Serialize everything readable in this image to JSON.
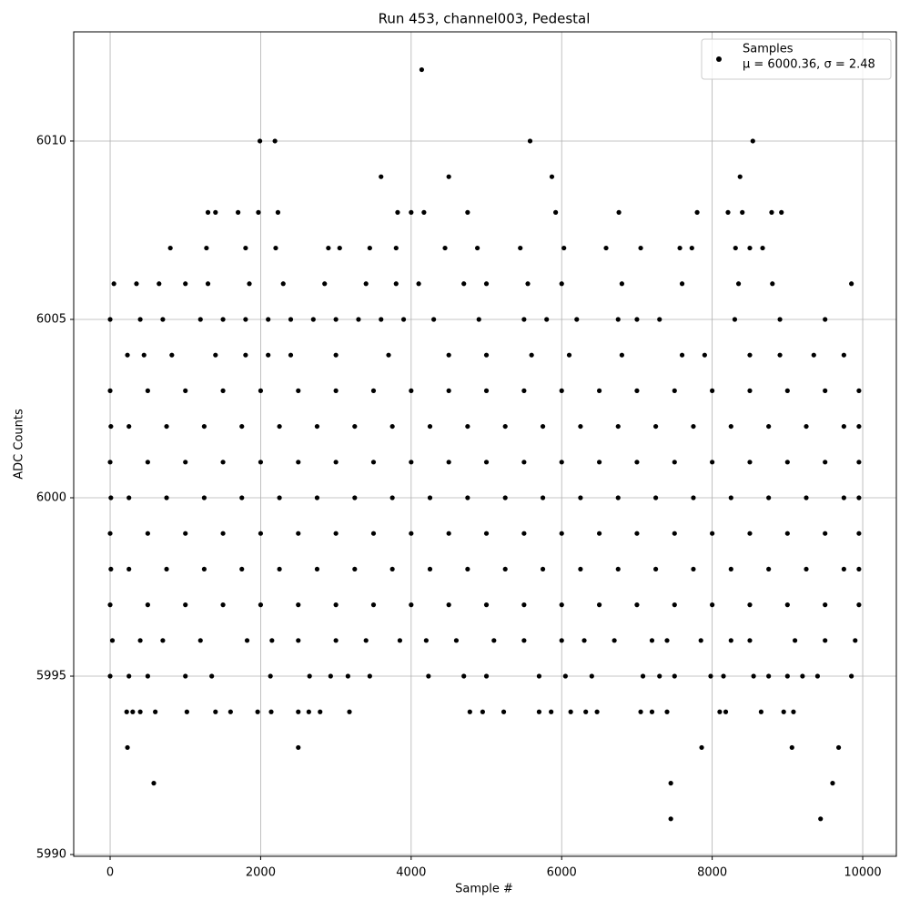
{
  "chart_data": {
    "type": "scatter",
    "title": "Run 453, channel003, Pedestal",
    "x_label": "Sample #",
    "y_label": "ADC Counts",
    "xlim": [
      -484,
      10447
    ],
    "ylim": [
      5989.95,
      6013.06
    ],
    "xticks": [
      0,
      2000,
      4000,
      6000,
      8000,
      10000
    ],
    "yticks": [
      5990,
      5995,
      6000,
      6005,
      6010
    ],
    "grid": true,
    "legend": "upper right",
    "legend_stats": "μ = 6000.36, σ = 2.48",
    "series": [
      {
        "name": "Samples",
        "color": "#000000",
        "x": [
          4140,
          1990,
          2190,
          5580,
          8540,
          3600,
          4500,
          5870,
          8370,
          1300,
          1400,
          1700,
          1970,
          2230,
          3820,
          4000,
          4170,
          4750,
          5920,
          6760,
          7800,
          8210,
          8400,
          8790,
          8920,
          800,
          1280,
          1800,
          2200,
          2900,
          3050,
          3450,
          3800,
          4450,
          4880,
          5450,
          6030,
          6590,
          7050,
          7570,
          7730,
          8310,
          8500,
          8670,
          50,
          350,
          650,
          1000,
          1300,
          1850,
          2300,
          2850,
          3400,
          3800,
          4100,
          4700,
          5000,
          5550,
          6000,
          6800,
          7600,
          8350,
          8800,
          9850,
          0,
          400,
          700,
          1200,
          1500,
          1800,
          2100,
          2400,
          2700,
          3000,
          3300,
          3600,
          3900,
          4300,
          4900,
          5500,
          5800,
          6200,
          6750,
          7000,
          7300,
          8300,
          8900,
          9500,
          230,
          450,
          820,
          1400,
          1800,
          2100,
          2400,
          3000,
          3700,
          4500,
          5000,
          5600,
          6100,
          6800,
          7600,
          7900,
          8500,
          8900,
          9350,
          9750,
          0,
          500,
          1000,
          1500,
          2000,
          2500,
          3000,
          3500,
          4000,
          4500,
          5000,
          5500,
          6000,
          6500,
          7000,
          7500,
          8000,
          8500,
          9000,
          9500,
          9950,
          10,
          250,
          750,
          1250,
          1750,
          2250,
          2750,
          3250,
          3750,
          4250,
          4750,
          5250,
          5750,
          6250,
          6750,
          7250,
          7750,
          8250,
          8750,
          9250,
          9750,
          9950,
          0,
          500,
          1000,
          1500,
          2000,
          2500,
          3000,
          3500,
          4000,
          4500,
          5000,
          5500,
          6000,
          6500,
          7000,
          7500,
          8000,
          8500,
          9000,
          9500,
          9950,
          10,
          250,
          750,
          1250,
          1750,
          2250,
          2750,
          3250,
          3750,
          4250,
          4750,
          5250,
          5750,
          6250,
          6750,
          7250,
          7750,
          8250,
          8750,
          9250,
          9750,
          9950,
          0,
          500,
          1000,
          1500,
          2000,
          2500,
          3000,
          3500,
          4000,
          4500,
          5000,
          5500,
          6000,
          6500,
          7000,
          7500,
          8000,
          8500,
          9000,
          9500,
          9950,
          10,
          250,
          750,
          1250,
          1750,
          2250,
          2750,
          3250,
          3750,
          4250,
          4750,
          5250,
          5750,
          6250,
          6750,
          7250,
          7750,
          8250,
          8750,
          9250,
          9750,
          9950,
          0,
          500,
          1000,
          1500,
          2000,
          2500,
          3000,
          3500,
          4000,
          4500,
          5000,
          5500,
          6000,
          6500,
          7000,
          7500,
          8000,
          8500,
          9000,
          9500,
          9950,
          30,
          400,
          700,
          1200,
          1820,
          2150,
          2500,
          3000,
          3400,
          3850,
          4200,
          4600,
          5100,
          5500,
          6000,
          6300,
          6700,
          7200,
          7400,
          7850,
          8250,
          8500,
          9100,
          9500,
          9900,
          0,
          250,
          500,
          1000,
          1350,
          2130,
          2650,
          2930,
          3160,
          3450,
          4230,
          4700,
          5000,
          5700,
          6050,
          6400,
          7080,
          7300,
          7500,
          7980,
          8150,
          8550,
          8750,
          9000,
          9200,
          9400,
          9850,
          220,
          300,
          400,
          600,
          1020,
          1400,
          1600,
          1960,
          2140,
          2500,
          2640,
          2790,
          3180,
          4780,
          4950,
          5230,
          5700,
          5860,
          6120,
          6320,
          6470,
          7050,
          7200,
          7400,
          8100,
          8180,
          8650,
          8950,
          9080,
          230,
          2500,
          7860,
          9060,
          9680,
          580,
          7450,
          9600,
          7450,
          9440
        ],
        "values": [
          6012,
          6010,
          6010,
          6010,
          6010,
          6009,
          6009,
          6009,
          6009,
          6008,
          6008,
          6008,
          6008,
          6008,
          6008,
          6008,
          6008,
          6008,
          6008,
          6008,
          6008,
          6008,
          6008,
          6008,
          6008,
          6007,
          6007,
          6007,
          6007,
          6007,
          6007,
          6007,
          6007,
          6007,
          6007,
          6007,
          6007,
          6007,
          6007,
          6007,
          6007,
          6007,
          6007,
          6007,
          6006,
          6006,
          6006,
          6006,
          6006,
          6006,
          6006,
          6006,
          6006,
          6006,
          6006,
          6006,
          6006,
          6006,
          6006,
          6006,
          6006,
          6006,
          6006,
          6006,
          6005,
          6005,
          6005,
          6005,
          6005,
          6005,
          6005,
          6005,
          6005,
          6005,
          6005,
          6005,
          6005,
          6005,
          6005,
          6005,
          6005,
          6005,
          6005,
          6005,
          6005,
          6005,
          6005,
          6005,
          6004,
          6004,
          6004,
          6004,
          6004,
          6004,
          6004,
          6004,
          6004,
          6004,
          6004,
          6004,
          6004,
          6004,
          6004,
          6004,
          6004,
          6004,
          6004,
          6004,
          6003,
          6003,
          6003,
          6003,
          6003,
          6003,
          6003,
          6003,
          6003,
          6003,
          6003,
          6003,
          6003,
          6003,
          6003,
          6003,
          6003,
          6003,
          6003,
          6003,
          6003,
          6002,
          6002,
          6002,
          6002,
          6002,
          6002,
          6002,
          6002,
          6002,
          6002,
          6002,
          6002,
          6002,
          6002,
          6002,
          6002,
          6002,
          6002,
          6002,
          6002,
          6002,
          6002,
          6001,
          6001,
          6001,
          6001,
          6001,
          6001,
          6001,
          6001,
          6001,
          6001,
          6001,
          6001,
          6001,
          6001,
          6001,
          6001,
          6001,
          6001,
          6001,
          6001,
          6001,
          6000,
          6000,
          6000,
          6000,
          6000,
          6000,
          6000,
          6000,
          6000,
          6000,
          6000,
          6000,
          6000,
          6000,
          6000,
          6000,
          6000,
          6000,
          6000,
          6000,
          6000,
          6000,
          5999,
          5999,
          5999,
          5999,
          5999,
          5999,
          5999,
          5999,
          5999,
          5999,
          5999,
          5999,
          5999,
          5999,
          5999,
          5999,
          5999,
          5999,
          5999,
          5999,
          5999,
          5998,
          5998,
          5998,
          5998,
          5998,
          5998,
          5998,
          5998,
          5998,
          5998,
          5998,
          5998,
          5998,
          5998,
          5998,
          5998,
          5998,
          5998,
          5998,
          5998,
          5998,
          5998,
          5997,
          5997,
          5997,
          5997,
          5997,
          5997,
          5997,
          5997,
          5997,
          5997,
          5997,
          5997,
          5997,
          5997,
          5997,
          5997,
          5997,
          5997,
          5997,
          5997,
          5997,
          5996,
          5996,
          5996,
          5996,
          5996,
          5996,
          5996,
          5996,
          5996,
          5996,
          5996,
          5996,
          5996,
          5996,
          5996,
          5996,
          5996,
          5996,
          5996,
          5996,
          5996,
          5996,
          5996,
          5996,
          5996,
          5995,
          5995,
          5995,
          5995,
          5995,
          5995,
          5995,
          5995,
          5995,
          5995,
          5995,
          5995,
          5995,
          5995,
          5995,
          5995,
          5995,
          5995,
          5995,
          5995,
          5995,
          5995,
          5995,
          5995,
          5995,
          5995,
          5995,
          5994,
          5994,
          5994,
          5994,
          5994,
          5994,
          5994,
          5994,
          5994,
          5994,
          5994,
          5994,
          5994,
          5994,
          5994,
          5994,
          5994,
          5994,
          5994,
          5994,
          5994,
          5994,
          5994,
          5994,
          5994,
          5994,
          5994,
          5994,
          5994,
          5993,
          5993,
          5993,
          5993,
          5993,
          5992,
          5992,
          5992,
          5991,
          5991
        ]
      }
    ]
  }
}
